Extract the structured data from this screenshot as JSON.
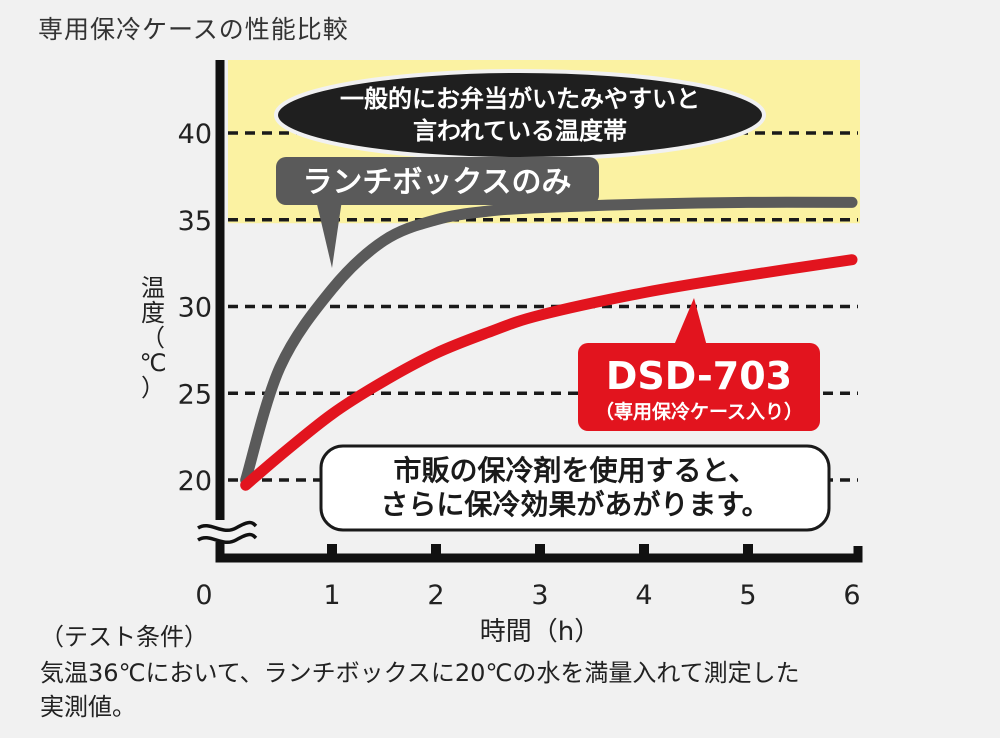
{
  "title": "専用保冷ケースの性能比較",
  "chart_data": {
    "type": "line",
    "x": [
      0.17,
      0.5,
      1,
      1.5,
      2,
      2.5,
      3,
      4,
      5,
      6
    ],
    "xlim": [
      0,
      6
    ],
    "ylim": [
      17,
      45
    ],
    "xticks": [
      "0",
      "1",
      "2",
      "3",
      "4",
      "5",
      "6"
    ],
    "yticks": [
      "20",
      "25",
      "30",
      "35",
      "40"
    ],
    "xlabel": "時間（h）",
    "ylabel_chars": [
      "温",
      "度",
      "（",
      "℃",
      "）"
    ],
    "grid": true,
    "band": {
      "from": 34.8,
      "to": 45,
      "color": "#fbf2a2",
      "label_lines": [
        "一般的にお弁当がいたみやすいと",
        "言われている温度帯"
      ]
    },
    "series": [
      {
        "name": "ランチボックスのみ",
        "color": "#5a5a5a",
        "values": [
          20,
          26.5,
          31,
          33.8,
          35,
          35.5,
          35.7,
          35.9,
          36,
          36
        ]
      },
      {
        "name": "DSD-703",
        "sublabel": "（専用保冷ケース入り）",
        "color": "#e2141e",
        "values": [
          19.7,
          21.4,
          23.8,
          25.7,
          27.3,
          28.5,
          29.5,
          30.8,
          31.8,
          32.7
        ]
      }
    ],
    "callout_lines": [
      "市販の保冷剤を使用すると、",
      "さらに保冷効果があがります。"
    ]
  },
  "notes": {
    "heading": "（テスト条件）",
    "line1": "気温36℃において、ランチボックスに20℃の水を満量入れて測定した",
    "line2": "実測値。"
  }
}
